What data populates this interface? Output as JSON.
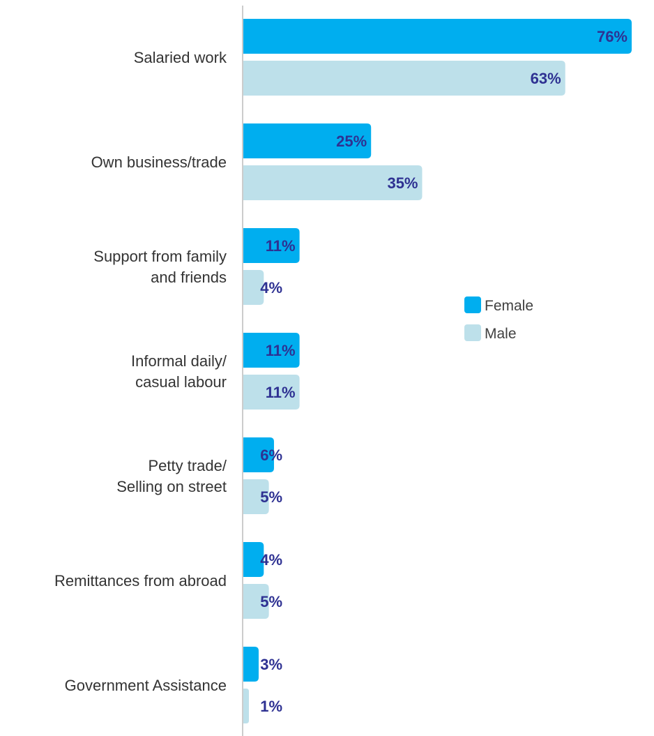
{
  "chart_data": {
    "type": "bar",
    "orientation": "horizontal",
    "categories": [
      [
        "Salaried work"
      ],
      [
        "Own business/trade"
      ],
      [
        "Support from family",
        "and friends"
      ],
      [
        "Informal daily/",
        "casual labour"
      ],
      [
        "Petty trade/",
        "Selling on street"
      ],
      [
        "Remittances from abroad"
      ],
      [
        "Government Assistance"
      ]
    ],
    "series": [
      {
        "name": "Female",
        "color": "#00aeef",
        "values": [
          76,
          25,
          11,
          11,
          6,
          4,
          3
        ],
        "labels": [
          "76%",
          "25%",
          "11%",
          "11%",
          "6%",
          "4%",
          "3%"
        ]
      },
      {
        "name": "Male",
        "color": "#bde0ea",
        "values": [
          63,
          35,
          4,
          11,
          5,
          5,
          1
        ],
        "labels": [
          "63%",
          "35%",
          "4%",
          "11%",
          "5%",
          "5%",
          "1%"
        ]
      }
    ],
    "xlim": [
      0,
      76
    ],
    "value_label_color": "#2e3192",
    "axis_color": "#cccccc",
    "grid": false,
    "legend_position": "right"
  }
}
